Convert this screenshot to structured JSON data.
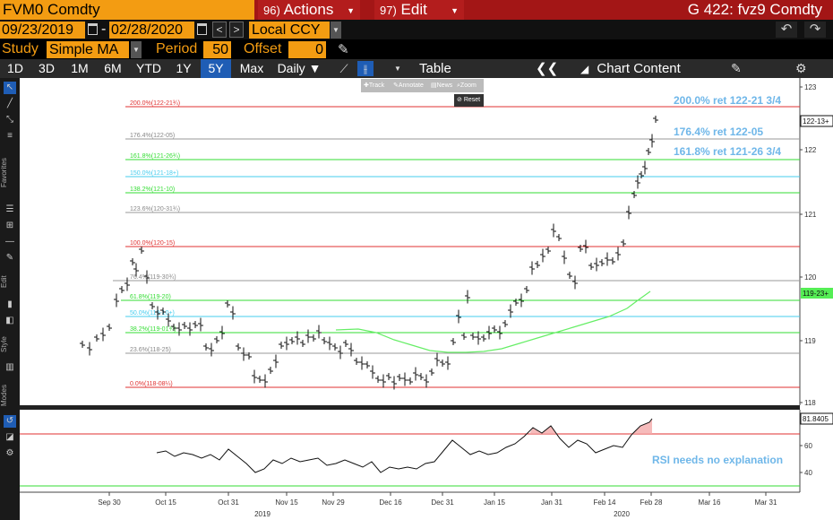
{
  "header": {
    "ticker": "FVM0 Comdty",
    "actions_num": "96)",
    "actions_label": "Actions",
    "edit_num": "97)",
    "edit_label": "Edit",
    "chart_id": "G 422: fvz9 Comdty"
  },
  "date_range": {
    "start": "09/23/2019",
    "separator": "-",
    "end": "02/28/2020",
    "currency": "Local CCY"
  },
  "study": {
    "study_label": "Study",
    "study_value": "Simple MA",
    "period_label": "Period",
    "period_value": "50",
    "offset_label": "Offset",
    "offset_value": "0"
  },
  "timeframes": {
    "items": [
      "1D",
      "3D",
      "1M",
      "6M",
      "YTD",
      "1Y",
      "5Y",
      "Max"
    ],
    "active": "5Y",
    "frequency": "Daily ▼",
    "table_label": "Table",
    "chart_content_label": "Chart Content"
  },
  "mini_toolbar": {
    "track": "Track",
    "annotate": "Annotate",
    "news": "News",
    "zoom": "Zoom",
    "reset": "Reset"
  },
  "left_toolbar": {
    "favorites": "Favorites",
    "edit": "Edit",
    "style": "Style",
    "modes": "Modes"
  },
  "colors": {
    "accent_orange": "#f39c12",
    "title_red": "#a31616",
    "active_blue": "#1f5db5",
    "fib_red": "#e03030",
    "fib_green": "#33dd33",
    "fib_cyan": "#44ccee",
    "fib_gray": "#999999",
    "ma_green": "#66ee66",
    "annotation_blue": "#6fb7e9"
  },
  "chart_data": {
    "type": "line",
    "main_panel": {
      "y_ticks": [
        "123",
        "122",
        "121",
        "120",
        "119",
        "118"
      ],
      "last_price_tag": "122-13+",
      "ma_tag": "119-23+",
      "fib_levels": [
        {
          "label": "200.0%(122-21¾)",
          "color": "red"
        },
        {
          "label": "176.4%(122-05)",
          "color": "gray"
        },
        {
          "label": "161.8%(121-26¾)",
          "color": "green"
        },
        {
          "label": "150.0%(121-18+)",
          "color": "cyan"
        },
        {
          "label": "138.2%(121-10)",
          "color": "green"
        },
        {
          "label": "123.6%(120-31¾)",
          "color": "gray"
        },
        {
          "label": "100.0%(120-15)",
          "color": "red"
        },
        {
          "label": "76.4%(119-30¾)",
          "color": "gray"
        },
        {
          "label": "61.8%(119-20)",
          "color": "green"
        },
        {
          "label": "50.0%(119-10+)",
          "color": "cyan"
        },
        {
          "label": "38.2%(119-01¾)",
          "color": "green"
        },
        {
          "label": "23.6%(118-25)",
          "color": "gray"
        },
        {
          "label": "0.0%(118-08¼)",
          "color": "red"
        }
      ],
      "annotations": [
        "200.0% ret 122-21 3/4",
        "176.4% ret 122-05",
        "161.8% ret 121-26 3/4"
      ]
    },
    "rsi_panel": {
      "y_ticks": [
        "60",
        "40"
      ],
      "last_value_tag": "81.8405",
      "annotation": "RSI needs no explanation"
    },
    "x_ticks": [
      "Sep 30",
      "Oct 15",
      "Oct 31",
      "Nov 15",
      "Nov 29",
      "Dec 16",
      "Dec 31",
      "Jan 15",
      "Jan 31",
      "Feb 14",
      "Feb 28",
      "Mar 16",
      "Mar 31"
    ],
    "year_labels": [
      "2019",
      "2020"
    ]
  }
}
